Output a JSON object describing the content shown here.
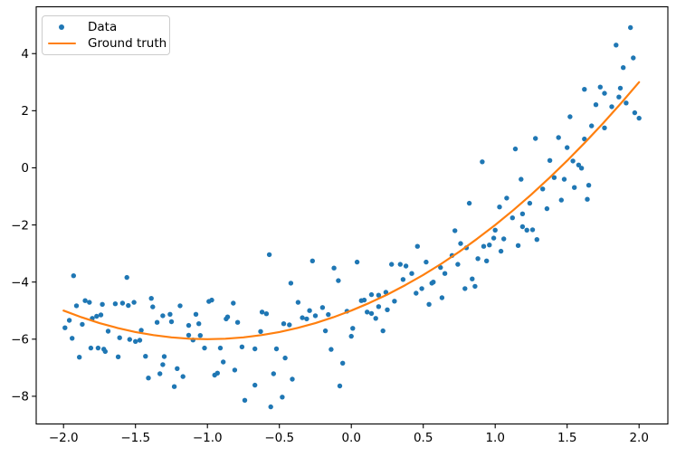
{
  "chart_data": {
    "type": "scatter",
    "title": "",
    "xlabel": "",
    "ylabel": "",
    "grid": false,
    "background": "#ffffff",
    "spine_color": "#000000",
    "xlim": [
      -2.19,
      2.2
    ],
    "ylim": [
      -8.97,
      5.64
    ],
    "x_ticks": {
      "values": [
        -2.0,
        -1.5,
        -1.0,
        -0.5,
        0.0,
        0.5,
        1.0,
        1.5,
        2.0
      ],
      "labels": [
        "−2.0",
        "−1.5",
        "−1.0",
        "−0.5",
        "0.0",
        "0.5",
        "1.0",
        "1.5",
        "2.0"
      ]
    },
    "y_ticks": {
      "values": [
        4,
        2,
        0,
        -2,
        -4,
        -6,
        -8
      ],
      "labels": [
        "4",
        "2",
        "0",
        "−2",
        "−4",
        "−6",
        "−8"
      ]
    },
    "legend": {
      "position": "upper left",
      "entries": [
        {
          "label": "Data",
          "type": "marker",
          "color": "#1f77b4"
        },
        {
          "label": "Ground truth",
          "type": "line",
          "color": "#ff7f0e"
        }
      ]
    },
    "series": [
      {
        "name": "Data",
        "type": "scatter",
        "color": "#1f77b4",
        "marker": "dot",
        "points": [
          [
            -1.99,
            -5.6
          ],
          [
            -1.96,
            -5.34
          ],
          [
            -1.94,
            -5.97
          ],
          [
            -1.93,
            -3.78
          ],
          [
            -1.91,
            -4.83
          ],
          [
            -1.89,
            -6.63
          ],
          [
            -1.87,
            -5.48
          ],
          [
            -1.85,
            -4.65
          ],
          [
            -1.82,
            -4.71
          ],
          [
            -1.81,
            -6.31
          ],
          [
            -1.8,
            -5.27
          ],
          [
            -1.77,
            -5.2
          ],
          [
            -1.76,
            -6.31
          ],
          [
            -1.74,
            -5.15
          ],
          [
            -1.73,
            -4.78
          ],
          [
            -1.72,
            -6.35
          ],
          [
            -1.71,
            -6.43
          ],
          [
            -1.69,
            -5.72
          ],
          [
            -1.64,
            -4.76
          ],
          [
            -1.62,
            -6.62
          ],
          [
            -1.61,
            -5.95
          ],
          [
            -1.59,
            -4.74
          ],
          [
            -1.56,
            -3.84
          ],
          [
            -1.55,
            -4.82
          ],
          [
            -1.54,
            -6.01
          ],
          [
            -1.51,
            -4.71
          ],
          [
            -1.5,
            -6.08
          ],
          [
            -1.47,
            -6.04
          ],
          [
            -1.46,
            -5.69
          ],
          [
            -1.43,
            -6.6
          ],
          [
            -1.41,
            -7.36
          ],
          [
            -1.39,
            -4.57
          ],
          [
            -1.38,
            -4.87
          ],
          [
            -1.35,
            -5.41
          ],
          [
            -1.33,
            -7.21
          ],
          [
            -1.31,
            -5.18
          ],
          [
            -1.31,
            -6.89
          ],
          [
            -1.3,
            -6.61
          ],
          [
            -1.26,
            -5.13
          ],
          [
            -1.25,
            -5.39
          ],
          [
            -1.23,
            -7.66
          ],
          [
            -1.21,
            -7.03
          ],
          [
            -1.19,
            -4.83
          ],
          [
            -1.17,
            -7.31
          ],
          [
            -1.13,
            -5.52
          ],
          [
            -1.13,
            -5.86
          ],
          [
            -1.1,
            -6.03
          ],
          [
            -1.08,
            -5.13
          ],
          [
            -1.06,
            -5.46
          ],
          [
            -1.05,
            -5.87
          ],
          [
            -1.02,
            -6.31
          ],
          [
            -0.99,
            -4.68
          ],
          [
            -0.97,
            -4.63
          ],
          [
            -0.95,
            -7.26
          ],
          [
            -0.93,
            -7.19
          ],
          [
            -0.91,
            -6.31
          ],
          [
            -0.89,
            -6.8
          ],
          [
            -0.87,
            -5.29
          ],
          [
            -0.86,
            -5.22
          ],
          [
            -0.82,
            -4.74
          ],
          [
            -0.81,
            -7.08
          ],
          [
            -0.79,
            -5.41
          ],
          [
            -0.76,
            -6.27
          ],
          [
            -0.74,
            -8.14
          ],
          [
            -0.67,
            -6.34
          ],
          [
            -0.67,
            -7.61
          ],
          [
            -0.63,
            -5.73
          ],
          [
            -0.62,
            -5.05
          ],
          [
            -0.59,
            -5.11
          ],
          [
            -0.57,
            -3.04
          ],
          [
            -0.56,
            -8.37
          ],
          [
            -0.54,
            -7.21
          ],
          [
            -0.52,
            -6.34
          ],
          [
            -0.48,
            -8.03
          ],
          [
            -0.47,
            -5.46
          ],
          [
            -0.46,
            -6.66
          ],
          [
            -0.43,
            -5.5
          ],
          [
            -0.42,
            -4.04
          ],
          [
            -0.41,
            -7.4
          ],
          [
            -0.37,
            -4.71
          ],
          [
            -0.34,
            -5.25
          ],
          [
            -0.31,
            -5.29
          ],
          [
            -0.29,
            -5.0
          ],
          [
            -0.27,
            -3.26
          ],
          [
            -0.25,
            -5.18
          ],
          [
            -0.2,
            -4.89
          ],
          [
            -0.18,
            -5.71
          ],
          [
            -0.16,
            -5.14
          ],
          [
            -0.14,
            -6.36
          ],
          [
            -0.12,
            -3.51
          ],
          [
            -0.09,
            -3.95
          ],
          [
            -0.08,
            -7.64
          ],
          [
            -0.06,
            -6.84
          ],
          [
            -0.03,
            -5.02
          ],
          [
            0.0,
            -5.9
          ],
          [
            0.01,
            -5.62
          ],
          [
            0.04,
            -3.3
          ],
          [
            0.07,
            -4.65
          ],
          [
            0.09,
            -4.63
          ],
          [
            0.11,
            -5.05
          ],
          [
            0.14,
            -4.44
          ],
          [
            0.14,
            -5.1
          ],
          [
            0.17,
            -5.27
          ],
          [
            0.19,
            -4.46
          ],
          [
            0.19,
            -4.86
          ],
          [
            0.22,
            -5.71
          ],
          [
            0.24,
            -4.36
          ],
          [
            0.25,
            -4.97
          ],
          [
            0.28,
            -3.38
          ],
          [
            0.3,
            -4.67
          ],
          [
            0.34,
            -3.38
          ],
          [
            0.36,
            -3.91
          ],
          [
            0.38,
            -3.44
          ],
          [
            0.42,
            -3.7
          ],
          [
            0.45,
            -4.39
          ],
          [
            0.46,
            -2.75
          ],
          [
            0.49,
            -4.23
          ],
          [
            0.52,
            -3.3
          ],
          [
            0.54,
            -4.78
          ],
          [
            0.56,
            -4.04
          ],
          [
            0.57,
            -4.0
          ],
          [
            0.62,
            -3.49
          ],
          [
            0.63,
            -4.55
          ],
          [
            0.65,
            -3.7
          ],
          [
            0.7,
            -3.07
          ],
          [
            0.72,
            -2.2
          ],
          [
            0.74,
            -3.38
          ],
          [
            0.76,
            -2.65
          ],
          [
            0.79,
            -4.23
          ],
          [
            0.8,
            -2.8
          ],
          [
            0.82,
            -1.24
          ],
          [
            0.84,
            -3.89
          ],
          [
            0.86,
            -4.15
          ],
          [
            0.88,
            -3.18
          ],
          [
            0.91,
            0.21
          ],
          [
            0.92,
            -2.75
          ],
          [
            0.94,
            -3.26
          ],
          [
            0.96,
            -2.7
          ],
          [
            0.99,
            -2.46
          ],
          [
            1.0,
            -2.18
          ],
          [
            1.03,
            -1.37
          ],
          [
            1.04,
            -2.92
          ],
          [
            1.06,
            -2.49
          ],
          [
            1.08,
            -1.06
          ],
          [
            1.12,
            -1.75
          ],
          [
            1.14,
            0.66
          ],
          [
            1.16,
            -2.72
          ],
          [
            1.18,
            -0.4
          ],
          [
            1.19,
            -1.61
          ],
          [
            1.19,
            -2.06
          ],
          [
            1.22,
            -2.18
          ],
          [
            1.24,
            -1.24
          ],
          [
            1.26,
            -2.17
          ],
          [
            1.28,
            1.03
          ],
          [
            1.29,
            -2.51
          ],
          [
            1.33,
            -0.74
          ],
          [
            1.36,
            -1.43
          ],
          [
            1.38,
            0.26
          ],
          [
            1.41,
            -0.34
          ],
          [
            1.44,
            1.06
          ],
          [
            1.46,
            -1.13
          ],
          [
            1.48,
            -0.4
          ],
          [
            1.5,
            0.71
          ],
          [
            1.52,
            1.79
          ],
          [
            1.54,
            0.24
          ],
          [
            1.55,
            -0.69
          ],
          [
            1.58,
            0.1
          ],
          [
            1.6,
            -0.01
          ],
          [
            1.62,
            1.01
          ],
          [
            1.62,
            2.75
          ],
          [
            1.64,
            -1.1
          ],
          [
            1.65,
            -0.61
          ],
          [
            1.67,
            1.47
          ],
          [
            1.7,
            2.21
          ],
          [
            1.73,
            2.83
          ],
          [
            1.76,
            1.4
          ],
          [
            1.76,
            2.61
          ],
          [
            1.81,
            2.14
          ],
          [
            1.84,
            4.3
          ],
          [
            1.86,
            2.48
          ],
          [
            1.87,
            2.79
          ],
          [
            1.89,
            3.51
          ],
          [
            1.91,
            2.27
          ],
          [
            1.94,
            4.91
          ],
          [
            1.96,
            3.85
          ],
          [
            1.97,
            1.93
          ],
          [
            2.0,
            1.74
          ]
        ]
      },
      {
        "name": "Ground truth",
        "type": "line",
        "color": "#ff7f0e",
        "points": [
          [
            -2.0,
            -5.0
          ],
          [
            -1.875,
            -5.234
          ],
          [
            -1.75,
            -5.438
          ],
          [
            -1.625,
            -5.609
          ],
          [
            -1.5,
            -5.75
          ],
          [
            -1.375,
            -5.859
          ],
          [
            -1.25,
            -5.938
          ],
          [
            -1.125,
            -5.984
          ],
          [
            -1.0,
            -6.0
          ],
          [
            -0.875,
            -5.984
          ],
          [
            -0.75,
            -5.938
          ],
          [
            -0.625,
            -5.859
          ],
          [
            -0.5,
            -5.75
          ],
          [
            -0.375,
            -5.609
          ],
          [
            -0.25,
            -5.438
          ],
          [
            -0.125,
            -5.234
          ],
          [
            0.0,
            -5.0
          ],
          [
            0.125,
            -4.734
          ],
          [
            0.25,
            -4.438
          ],
          [
            0.375,
            -4.109
          ],
          [
            0.5,
            -3.75
          ],
          [
            0.625,
            -3.359
          ],
          [
            0.75,
            -2.938
          ],
          [
            0.875,
            -2.484
          ],
          [
            1.0,
            -2.0
          ],
          [
            1.125,
            -1.484
          ],
          [
            1.25,
            -0.938
          ],
          [
            1.375,
            -0.359
          ],
          [
            1.5,
            0.25
          ],
          [
            1.625,
            0.891
          ],
          [
            1.75,
            1.563
          ],
          [
            1.875,
            2.266
          ],
          [
            2.0,
            3.0
          ]
        ]
      }
    ]
  }
}
